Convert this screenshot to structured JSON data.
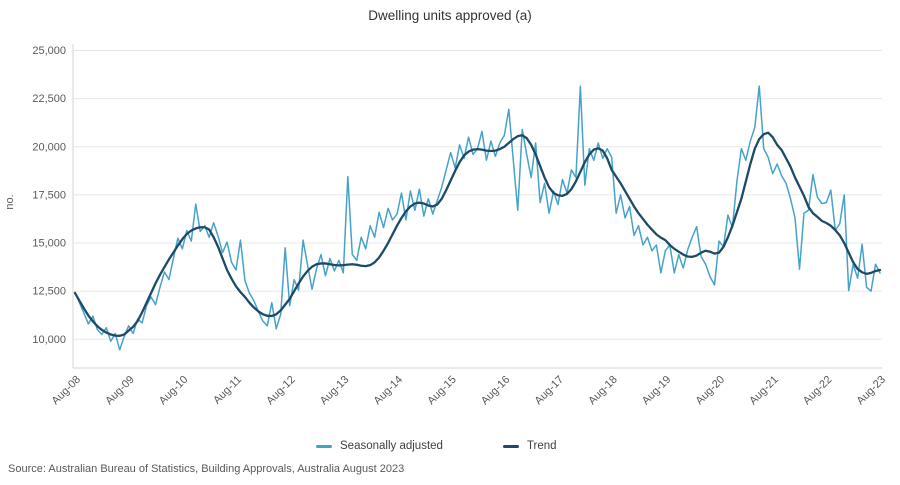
{
  "header": {
    "title": "Dwelling units approved (a)"
  },
  "y_axis": {
    "title": "no.",
    "tick_labels": [
      "25,000",
      "22,500",
      "20,000",
      "17,500",
      "15,000",
      "12,500",
      "10,000"
    ]
  },
  "x_axis": {
    "tick_labels": [
      "Aug-08",
      "Aug-09",
      "Aug-10",
      "Aug-11",
      "Aug-12",
      "Aug-13",
      "Aug-14",
      "Aug-15",
      "Aug-16",
      "Aug-17",
      "Aug-18",
      "Aug-19",
      "Aug-20",
      "Aug-21",
      "Aug-22",
      "Aug-23"
    ]
  },
  "legend": {
    "items": [
      {
        "label": "Seasonally adjusted",
        "color": "#46a2cb"
      },
      {
        "label": "Trend",
        "color": "#1d4a66"
      }
    ]
  },
  "footer": {
    "source": "Source: Australian Bureau of Statistics, Building Approvals, Australia August 2023"
  },
  "colors": {
    "background": "#ffffff",
    "gridline": "#e8e8e8",
    "axis_line": "#d6d6d6",
    "tick_text": "#595959",
    "title_text": "#333333",
    "seasonally_adjusted": "#46a2cb",
    "trend": "#1d4a66"
  },
  "chart_data": {
    "type": "line",
    "title": "Dwelling units approved (a)",
    "ylabel": "no.",
    "xlabel": "",
    "frequency": "monthly",
    "x_start": "Aug-08",
    "x_end": "Aug-23",
    "x_tick_labels": [
      "Aug-08",
      "Aug-09",
      "Aug-10",
      "Aug-11",
      "Aug-12",
      "Aug-13",
      "Aug-14",
      "Aug-15",
      "Aug-16",
      "Aug-17",
      "Aug-18",
      "Aug-19",
      "Aug-20",
      "Aug-21",
      "Aug-22",
      "Aug-23"
    ],
    "x_ticks_every_n_points": 12,
    "ylim": [
      10000,
      25000
    ],
    "y_tick_step": 2500,
    "grid": "horizontal",
    "legend_position": "bottom",
    "series": [
      {
        "name": "Seasonally adjusted",
        "color": "#46a2cb",
        "stroke_width": 1.5,
        "values": [
          12450,
          11900,
          11350,
          10800,
          11200,
          10500,
          10250,
          10600,
          9900,
          10300,
          9450,
          10150,
          10700,
          10300,
          11050,
          10850,
          11750,
          12200,
          11800,
          12700,
          13500,
          13100,
          14200,
          15250,
          14700,
          15650,
          15100,
          17020,
          15600,
          15900,
          15300,
          16050,
          15350,
          14500,
          15050,
          14000,
          13600,
          15150,
          13050,
          12400,
          12000,
          11450,
          10950,
          10700,
          11900,
          10550,
          11300,
          14750,
          11750,
          13100,
          12550,
          15150,
          13850,
          12600,
          13650,
          14400,
          13300,
          14200,
          13550,
          14100,
          13450,
          18450,
          14400,
          14100,
          15300,
          14700,
          15900,
          15300,
          16600,
          15800,
          16800,
          16200,
          16500,
          17600,
          16200,
          17700,
          16700,
          17800,
          16400,
          17300,
          16500,
          17200,
          17900,
          18800,
          19700,
          18900,
          20100,
          19400,
          20500,
          19600,
          19900,
          20800,
          19300,
          20300,
          19500,
          20200,
          20600,
          21950,
          19300,
          16700,
          20900,
          19600,
          18400,
          20200,
          17100,
          18100,
          16550,
          17700,
          17000,
          18300,
          17600,
          18800,
          18400,
          23140,
          18000,
          19900,
          19300,
          20200,
          19400,
          19900,
          19450,
          16550,
          17500,
          16300,
          16900,
          15400,
          15900,
          14900,
          15300,
          14600,
          14900,
          13450,
          14600,
          14900,
          13450,
          14400,
          13700,
          14650,
          15300,
          15850,
          14300,
          13900,
          13250,
          12820,
          15100,
          14800,
          16450,
          15800,
          18200,
          19900,
          19300,
          20300,
          21000,
          23150,
          19900,
          19450,
          18600,
          19100,
          18500,
          18100,
          17300,
          16300,
          13640,
          16550,
          16700,
          18550,
          17380,
          17050,
          17100,
          17750,
          15670,
          16000,
          17500,
          12530,
          13900,
          13170,
          14940,
          12700,
          12500,
          13900,
          13450
        ]
      },
      {
        "name": "Trend",
        "color": "#1d4a66",
        "stroke_width": 2.3,
        "values": [
          12400,
          12000,
          11600,
          11230,
          10930,
          10680,
          10490,
          10350,
          10250,
          10190,
          10180,
          10250,
          10450,
          10650,
          10950,
          11400,
          11900,
          12400,
          12900,
          13350,
          13750,
          14150,
          14500,
          14870,
          15200,
          15470,
          15650,
          15760,
          15820,
          15820,
          15700,
          15300,
          14800,
          14200,
          13600,
          13150,
          12750,
          12450,
          12200,
          11900,
          11650,
          11450,
          11300,
          11220,
          11210,
          11300,
          11500,
          11800,
          12100,
          12500,
          12900,
          13260,
          13550,
          13770,
          13900,
          13940,
          13940,
          13900,
          13860,
          13840,
          13850,
          13880,
          13900,
          13870,
          13820,
          13800,
          13850,
          14000,
          14250,
          14600,
          15000,
          15450,
          15900,
          16300,
          16650,
          16900,
          17050,
          17100,
          17050,
          16950,
          16900,
          17000,
          17300,
          17750,
          18250,
          18750,
          19200,
          19550,
          19750,
          19850,
          19880,
          19850,
          19800,
          19780,
          19800,
          19880,
          20000,
          20200,
          20400,
          20550,
          20600,
          20450,
          20100,
          19600,
          19000,
          18400,
          17900,
          17600,
          17480,
          17450,
          17550,
          17800,
          18200,
          18700,
          19200,
          19600,
          19850,
          19920,
          19800,
          19400,
          18800,
          18450,
          18100,
          17700,
          17300,
          16900,
          16550,
          16250,
          15950,
          15700,
          15450,
          15280,
          15150,
          14900,
          14700,
          14550,
          14400,
          14300,
          14280,
          14350,
          14500,
          14600,
          14550,
          14450,
          14500,
          14800,
          15300,
          15900,
          16600,
          17300,
          18200,
          19100,
          19900,
          20400,
          20650,
          20730,
          20500,
          20100,
          19830,
          19400,
          18960,
          18400,
          17930,
          17450,
          16880,
          16550,
          16360,
          16150,
          16040,
          15900,
          15670,
          15400,
          15000,
          14500,
          14000,
          13650,
          13480,
          13400,
          13450,
          13550,
          13600
        ]
      }
    ]
  }
}
